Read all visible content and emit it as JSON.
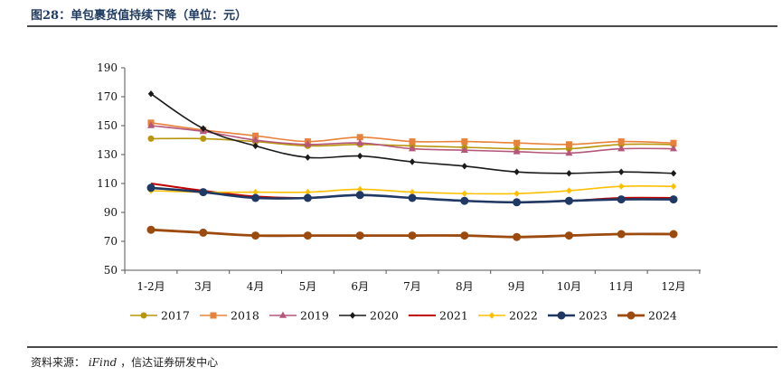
{
  "header": {
    "title": "图28：单包裹货值持续下降（单位：元）"
  },
  "footer": {
    "source_label": "资料来源：",
    "source_name": "iFind",
    "source_rest": "，信达证券研发中心"
  },
  "chart_data": {
    "type": "line",
    "title": "图28：单包裹货值持续下降（单位：元）",
    "xlabel": "",
    "ylabel": "",
    "ylim": [
      50,
      190
    ],
    "yticks": [
      50,
      70,
      90,
      110,
      130,
      150,
      170,
      190
    ],
    "grid": false,
    "legend": "bottom",
    "categories": [
      "1-2月",
      "3月",
      "4月",
      "5月",
      "6月",
      "7月",
      "8月",
      "9月",
      "10月",
      "11月",
      "12月"
    ],
    "series": [
      {
        "name": "2017",
        "color": "#B8960C",
        "marker": "circle",
        "width": 1.6,
        "values": [
          141,
          141,
          139,
          136,
          137,
          136,
          135,
          134,
          134,
          137,
          137
        ]
      },
      {
        "name": "2018",
        "color": "#E8823A",
        "marker": "square",
        "width": 1.6,
        "values": [
          152,
          147,
          143,
          139,
          142,
          139,
          139,
          138,
          137,
          139,
          138
        ]
      },
      {
        "name": "2019",
        "color": "#B5567B",
        "marker": "triangle",
        "width": 1.6,
        "values": [
          150,
          146,
          140,
          137,
          138,
          134,
          133,
          132,
          131,
          134,
          134
        ]
      },
      {
        "name": "2020",
        "color": "#1A1A1A",
        "marker": "diamond",
        "width": 1.6,
        "values": [
          172,
          148,
          136,
          128,
          129,
          125,
          122,
          118,
          117,
          118,
          117
        ]
      },
      {
        "name": "2021",
        "color": "#C00000",
        "marker": "none",
        "width": 2,
        "values": [
          110,
          105,
          101,
          100,
          102,
          100,
          98,
          97,
          98,
          100,
          100
        ]
      },
      {
        "name": "2022",
        "color": "#FFC000",
        "marker": "diamond",
        "width": 1.6,
        "values": [
          105,
          104,
          104,
          104,
          106,
          104,
          103,
          103,
          105,
          108,
          108
        ]
      },
      {
        "name": "2023",
        "color": "#1F3864",
        "marker": "circle",
        "width": 2.6,
        "values": [
          107,
          104,
          100,
          100,
          102,
          100,
          98,
          97,
          98,
          99,
          99
        ]
      },
      {
        "name": "2024",
        "color": "#9C4A0E",
        "marker": "circle",
        "width": 2.8,
        "values": [
          78,
          76,
          74,
          74,
          74,
          74,
          74,
          73,
          74,
          75,
          75
        ]
      }
    ]
  }
}
